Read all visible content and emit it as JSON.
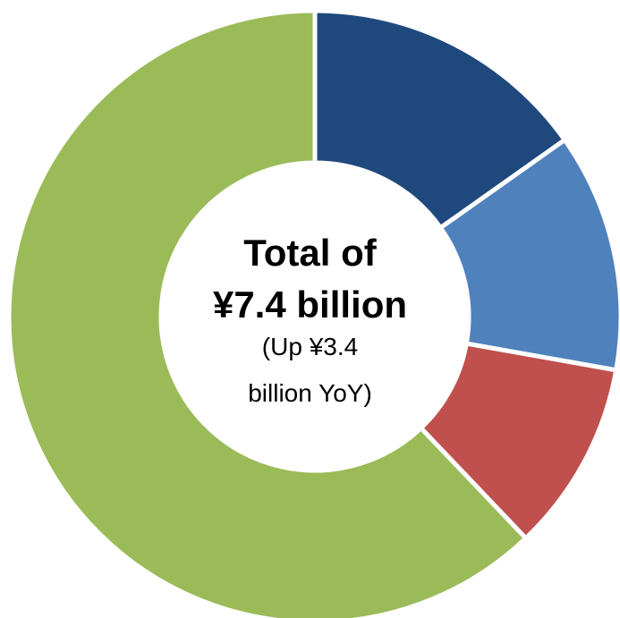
{
  "chart_data": {
    "type": "pie",
    "variant": "donut",
    "legend": "none",
    "slices": [
      {
        "value": 15.2,
        "color": "#1f497d"
      },
      {
        "value": 12.6,
        "color": "#4f81bd"
      },
      {
        "value": 10.1,
        "color": "#c0504d"
      },
      {
        "value": 62.1,
        "color": "#9bbb59"
      }
    ],
    "center_text": {
      "line1": "Total of",
      "line2": "¥7.4 billion",
      "line3": "(Up ¥3.4",
      "line4": "billion YoY)"
    }
  }
}
